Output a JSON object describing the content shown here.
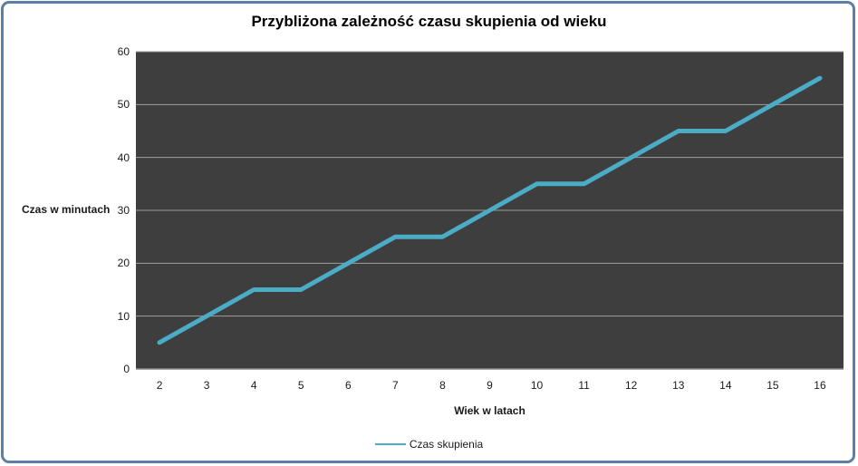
{
  "chart_data": {
    "type": "line",
    "title": "Przybliżona zależność czasu skupienia od wieku",
    "xlabel": "Wiek w latach",
    "ylabel": "Czas w minutach",
    "categories": [
      "2",
      "3",
      "4",
      "5",
      "6",
      "7",
      "8",
      "9",
      "10",
      "11",
      "12",
      "13",
      "14",
      "15",
      "16"
    ],
    "series": [
      {
        "name": "Czas skupienia",
        "values": [
          5,
          10,
          15,
          15,
          20,
          25,
          25,
          30,
          35,
          35,
          40,
          45,
          45,
          50,
          55
        ],
        "color": "#4bacc6"
      }
    ],
    "ylim": [
      0,
      60
    ],
    "ytick_step": 10,
    "yticks": [
      "0",
      "10",
      "20",
      "30",
      "40",
      "50",
      "60"
    ],
    "grid": true,
    "legend_position": "bottom",
    "colors": {
      "plot_background": "#3e3e3e",
      "gridline": "#9e9e9e",
      "axis_line": "#8c8c8c",
      "chart_border": "#5b80a8",
      "line": "#4bacc6",
      "text": "#1a1a1a"
    }
  }
}
